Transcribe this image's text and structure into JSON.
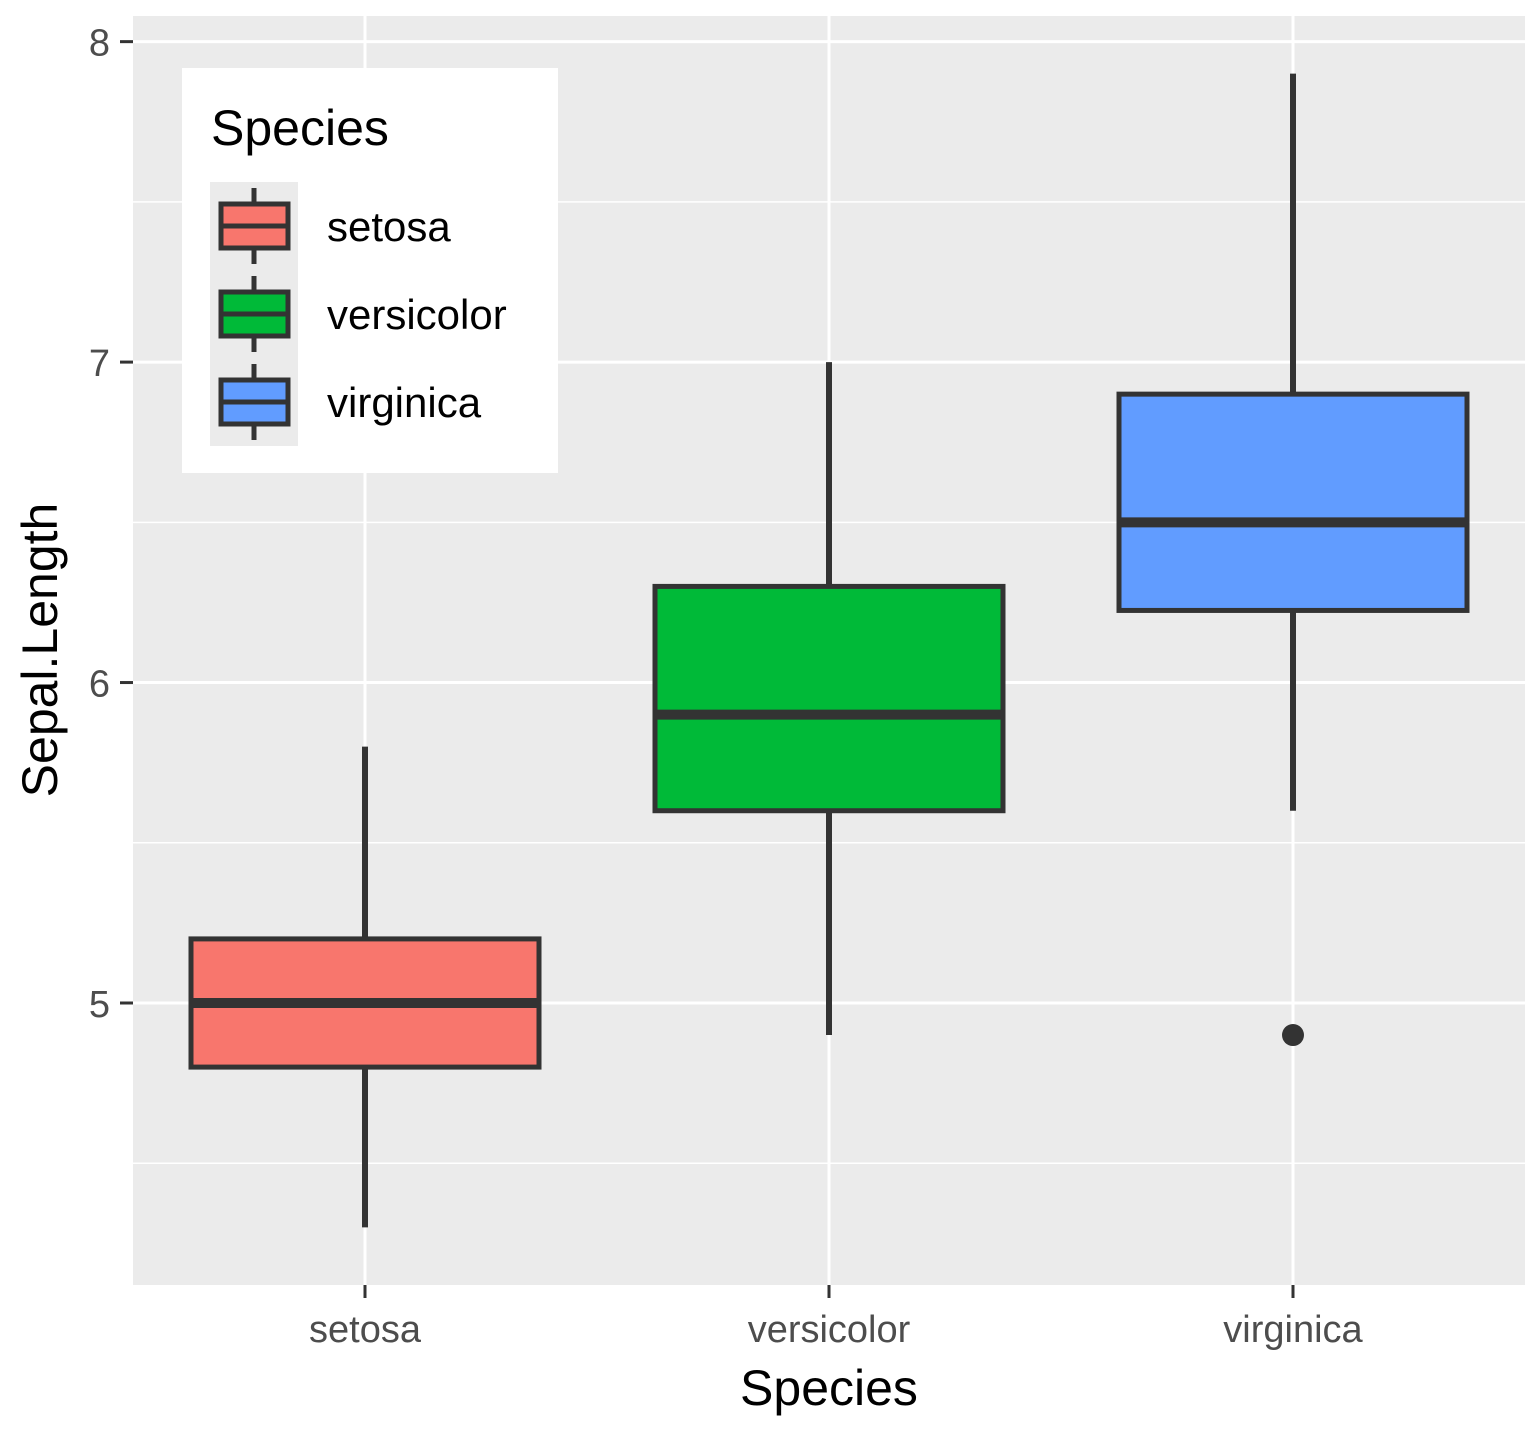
{
  "chart_data": {
    "type": "boxplot",
    "title": "",
    "xlabel": "Species",
    "ylabel": "Sepal.Length",
    "categories": [
      "setosa",
      "versicolor",
      "virginica"
    ],
    "ylim": [
      4.12,
      8.08
    ],
    "yticks": [
      5,
      6,
      7,
      8
    ],
    "grid": true,
    "panel_background": "#EBEBEB",
    "legend": {
      "title": "Species",
      "position": "top-left inside",
      "entries": [
        "setosa",
        "versicolor",
        "virginica"
      ]
    },
    "colors": [
      "#F8766D",
      "#00BA38",
      "#619CFF"
    ],
    "boxes": [
      {
        "category": "setosa",
        "lower_whisker": 4.3,
        "q1": 4.8,
        "median": 5.0,
        "q3": 5.2,
        "upper_whisker": 5.8,
        "outliers": []
      },
      {
        "category": "versicolor",
        "lower_whisker": 4.9,
        "q1": 5.6,
        "median": 5.9,
        "q3": 6.3,
        "upper_whisker": 7.0,
        "outliers": []
      },
      {
        "category": "virginica",
        "lower_whisker": 5.6,
        "q1": 6.225,
        "median": 6.5,
        "q3": 6.9,
        "upper_whisker": 7.9,
        "outliers": [
          4.9
        ]
      }
    ]
  }
}
